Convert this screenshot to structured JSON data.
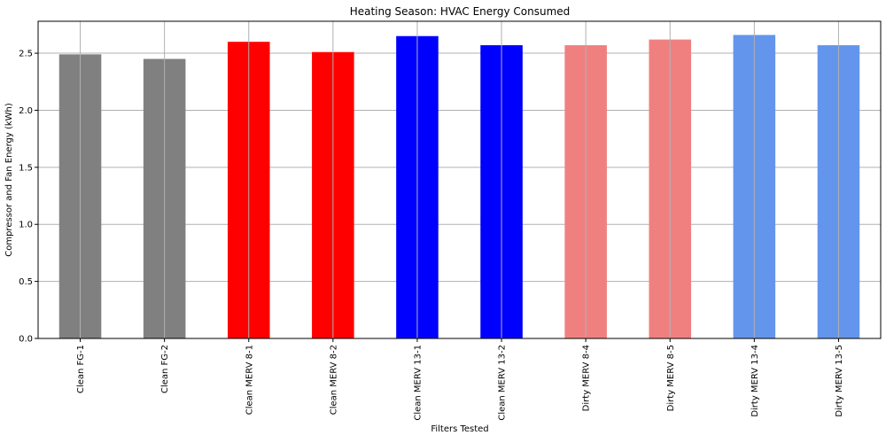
{
  "chart_data": {
    "type": "bar",
    "title": "Heating Season: HVAC Energy Consumed",
    "xlabel": "Filters Tested",
    "ylabel": "Compressor and Fan Energy (kWh)",
    "ylim": [
      0,
      2.78
    ],
    "yticks": [
      "0.0",
      "0.5",
      "1.0",
      "1.5",
      "2.0",
      "2.5"
    ],
    "grid": true,
    "categories": [
      "Clean FG-1",
      "Clean FG-2",
      "Clean MERV 8-1",
      "Clean MERV 8-2",
      "Clean MERV 13-1",
      "Clean MERV 13-2",
      "Dirty MERV 8-4",
      "Dirty MERV 8-5",
      "Dirty MERV 13-4",
      "Dirty MERV 13-5"
    ],
    "values": [
      2.49,
      2.45,
      2.6,
      2.51,
      2.65,
      2.57,
      2.57,
      2.62,
      2.66,
      2.57
    ],
    "colors": [
      "#808080",
      "#808080",
      "#ff0000",
      "#ff0000",
      "#0000ff",
      "#0000ff",
      "#f08080",
      "#f08080",
      "#6495ed",
      "#6495ed"
    ]
  }
}
